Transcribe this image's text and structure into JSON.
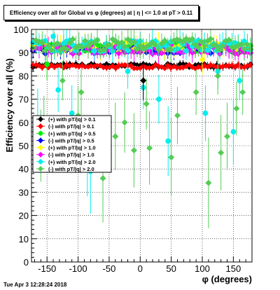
{
  "chart_data": {
    "type": "scatter",
    "title": "Efficiency over all for Global vs φ (degrees) at | η | <= 1.0 at pT > 0.11",
    "xlabel": "φ (degrees)",
    "ylabel": "Efficiency over all (%)",
    "xlim": [
      -175,
      180
    ],
    "ylim": [
      0,
      100
    ],
    "xticks": [
      -150,
      -100,
      -50,
      0,
      50,
      100,
      150
    ],
    "yticks": [
      0,
      10,
      20,
      30,
      40,
      50,
      60,
      70,
      80,
      90,
      100
    ],
    "grid": true,
    "legend_position": "left-middle",
    "series": [
      {
        "name": "(+) with pT/|q| > 0.1",
        "color": "#000000",
        "marker": "diamond",
        "y_level": 84.5,
        "y_noise": 0.8
      },
      {
        "name": "(-) with pT/|q| > 0.1",
        "color": "#ff0000",
        "marker": "diamond",
        "y_level": 84.0,
        "y_noise": 0.8
      },
      {
        "name": "(+) with pT/|q| > 0.5",
        "color": "#00ee00",
        "marker": "circle",
        "y_level": 92.0,
        "y_noise": 1.8
      },
      {
        "name": "(-) with pT/|q| > 0.5",
        "color": "#0000ff",
        "marker": "diamond",
        "y_level": 91.0,
        "y_noise": 1.5
      },
      {
        "name": "(+) with pT/|q| > 1.0",
        "color": "#ffff00",
        "marker": "diamond",
        "y_level": 92.5,
        "y_noise": 2.0
      },
      {
        "name": "(-) with pT/|q| > 1.0",
        "color": "#ff00ff",
        "marker": "diamond",
        "y_level": 91.5,
        "y_noise": 2.0
      },
      {
        "name": "(+) with pT/|q| > 2.0",
        "color": "#00eeee",
        "marker": "circle",
        "y_level": 93.0,
        "y_noise": 2.5
      },
      {
        "name": "(-) with pT/|q| > 2.0",
        "color": "#55cc55",
        "marker": "diamond",
        "y_level": 93.5,
        "y_noise": 2.5
      }
    ],
    "outliers": [
      {
        "series": 6,
        "x": -165,
        "y": 62
      },
      {
        "series": 6,
        "x": -140,
        "y": 97
      },
      {
        "series": 6,
        "x": -132,
        "y": 74
      },
      {
        "series": 6,
        "x": -110,
        "y": 64
      },
      {
        "series": 6,
        "x": -85,
        "y": 45
      },
      {
        "series": 6,
        "x": -80,
        "y": 39
      },
      {
        "series": 6,
        "x": -20,
        "y": 82
      },
      {
        "series": 6,
        "x": 5,
        "y": 75
      },
      {
        "series": 6,
        "x": 30,
        "y": 70
      },
      {
        "series": 6,
        "x": 45,
        "y": 52
      },
      {
        "series": 6,
        "x": 105,
        "y": 64
      },
      {
        "series": 6,
        "x": 150,
        "y": 56
      },
      {
        "series": 6,
        "x": 160,
        "y": 78
      },
      {
        "series": 6,
        "x": 125,
        "y": 82
      },
      {
        "series": 7,
        "x": -160,
        "y": 50
      },
      {
        "series": 7,
        "x": -155,
        "y": 58
      },
      {
        "series": 7,
        "x": -125,
        "y": 78
      },
      {
        "series": 7,
        "x": -100,
        "y": 63
      },
      {
        "series": 7,
        "x": -95,
        "y": 73
      },
      {
        "series": 7,
        "x": -60,
        "y": 36
      },
      {
        "series": 7,
        "x": -40,
        "y": 54
      },
      {
        "series": 7,
        "x": -25,
        "y": 60
      },
      {
        "series": 7,
        "x": -10,
        "y": 48
      },
      {
        "series": 7,
        "x": 10,
        "y": 68
      },
      {
        "series": 7,
        "x": 15,
        "y": 49
      },
      {
        "series": 7,
        "x": 50,
        "y": 45
      },
      {
        "series": 7,
        "x": 60,
        "y": 63
      },
      {
        "series": 7,
        "x": 90,
        "y": 73
      },
      {
        "series": 7,
        "x": 110,
        "y": 34
      },
      {
        "series": 7,
        "x": 125,
        "y": 80
      },
      {
        "series": 7,
        "x": 130,
        "y": 47
      },
      {
        "series": 7,
        "x": 140,
        "y": 54
      },
      {
        "series": 7,
        "x": 155,
        "y": 66
      },
      {
        "series": 7,
        "x": 165,
        "y": 73
      },
      {
        "series": 0,
        "x": 5,
        "y": 78
      },
      {
        "series": 2,
        "x": -150,
        "y": 85
      },
      {
        "series": 4,
        "x": 100,
        "y": 87
      }
    ]
  },
  "footer": {
    "timestamp": "Tue Apr  3 12:28:24 2018"
  }
}
